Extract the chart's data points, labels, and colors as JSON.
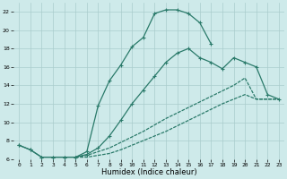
{
  "bg_color": "#ceeaea",
  "grid_color": "#aacccc",
  "line_color": "#2a7a6a",
  "xlim": [
    -0.5,
    23.5
  ],
  "ylim": [
    6,
    23
  ],
  "xticks": [
    0,
    1,
    2,
    3,
    4,
    5,
    6,
    7,
    8,
    9,
    10,
    11,
    12,
    13,
    14,
    15,
    16,
    17,
    18,
    19,
    20,
    21,
    22,
    23
  ],
  "yticks": [
    6,
    8,
    10,
    12,
    14,
    16,
    18,
    20,
    22
  ],
  "xlabel": "Humidex (Indice chaleur)",
  "curve1_x": [
    0,
    1,
    2,
    3,
    4,
    5,
    6,
    7,
    8,
    9,
    10,
    11,
    12,
    13,
    14,
    15,
    16,
    17
  ],
  "curve1_y": [
    7.5,
    7.0,
    6.2,
    6.2,
    6.2,
    6.2,
    6.8,
    11.8,
    14.5,
    16.2,
    18.2,
    19.2,
    21.8,
    22.2,
    22.2,
    21.8,
    20.8,
    18.5
  ],
  "curve2_x": [
    0,
    1,
    2,
    3,
    4,
    5,
    6,
    7,
    8,
    9,
    10,
    11,
    12,
    13,
    14,
    15,
    16,
    17,
    18,
    19,
    20,
    21,
    22,
    23
  ],
  "curve2_y": [
    7.5,
    7.0,
    6.2,
    6.2,
    6.2,
    6.2,
    6.5,
    7.2,
    8.5,
    10.2,
    12.0,
    13.5,
    15.0,
    16.5,
    17.5,
    18.0,
    17.0,
    16.5,
    15.8,
    17.0,
    16.5,
    16.0,
    13.0,
    12.5
  ],
  "curve3_x": [
    5,
    6,
    7,
    8,
    9,
    10,
    11,
    12,
    13,
    14,
    15,
    16,
    17,
    18,
    19,
    20,
    21,
    22,
    23
  ],
  "curve3_y": [
    6.2,
    6.4,
    6.8,
    7.2,
    7.8,
    8.4,
    9.0,
    9.7,
    10.4,
    11.0,
    11.6,
    12.2,
    12.8,
    13.4,
    14.0,
    14.8,
    12.5,
    12.5,
    12.5
  ],
  "curve4_x": [
    5,
    6,
    7,
    8,
    9,
    10,
    11,
    12,
    13,
    14,
    15,
    16,
    17,
    18,
    19,
    20,
    21,
    22,
    23
  ],
  "curve4_y": [
    6.2,
    6.2,
    6.4,
    6.6,
    7.0,
    7.5,
    8.0,
    8.5,
    9.0,
    9.6,
    10.2,
    10.8,
    11.4,
    12.0,
    12.5,
    13.0,
    12.5,
    12.5,
    12.5
  ],
  "marker_size": 2.5,
  "lw": 0.9,
  "tick_fontsize": 4.5,
  "xlabel_fontsize": 6.0
}
